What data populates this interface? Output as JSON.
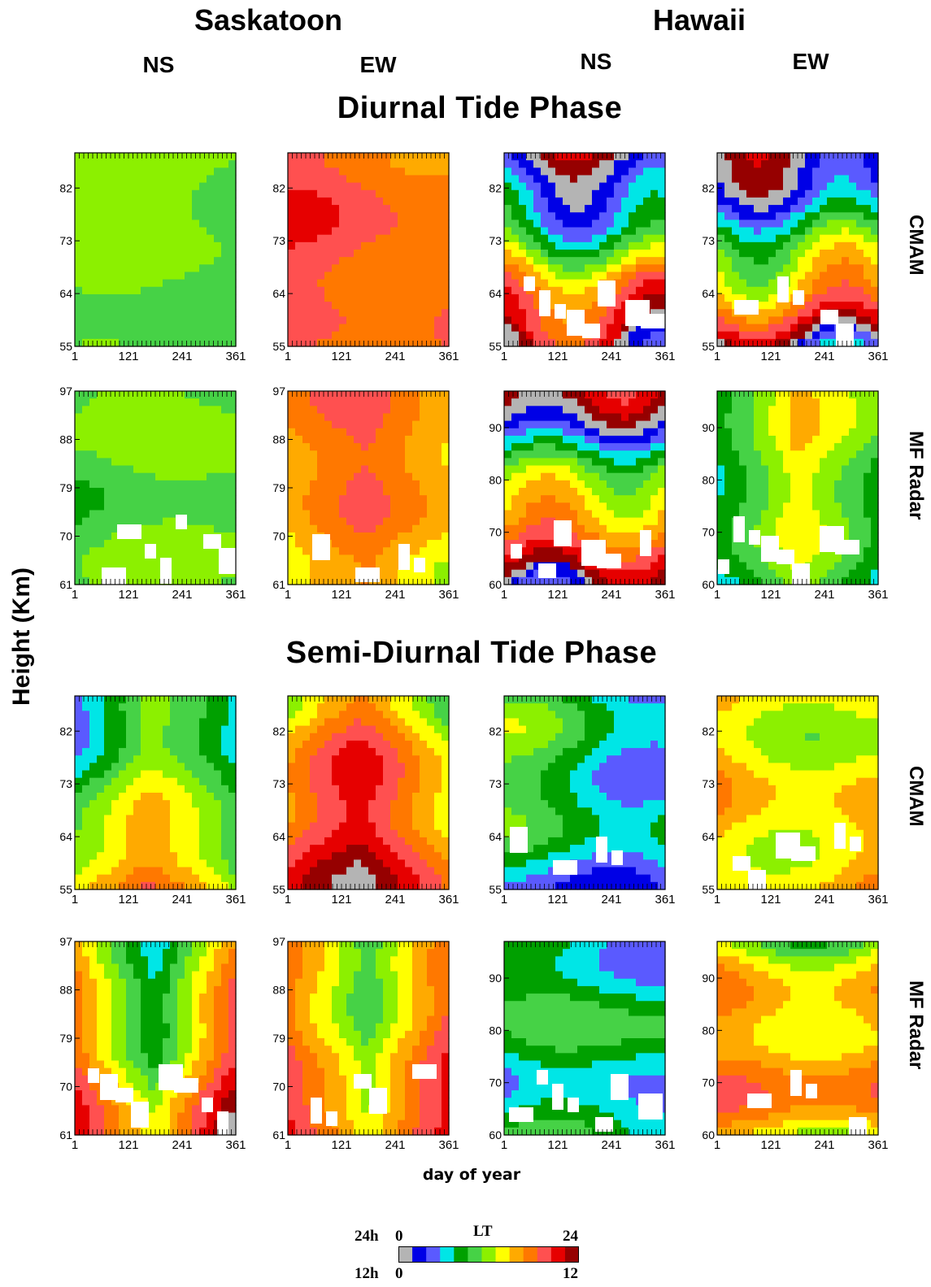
{
  "header": {
    "sites": [
      "Saskatoon",
      "Hawaii"
    ],
    "components": [
      "NS",
      "EW",
      "NS",
      "EW"
    ]
  },
  "sections": [
    "Diurnal Tide Phase",
    "Semi-Diurnal Tide Phase"
  ],
  "row_labels": [
    "CMAM",
    "MF Radar",
    "CMAM",
    "MF Radar"
  ],
  "y_axis_label": "Height (Km)",
  "x_axis_label": "day of year",
  "colorbar": {
    "title": "LT",
    "row1_label": "24h",
    "row2_label": "12h",
    "row1_min": "0",
    "row1_max": "24",
    "row2_min": "0",
    "row2_max": "12",
    "colors": [
      "#b4b4b4",
      "#0000e6",
      "#5a5aff",
      "#00e6e6",
      "#00a000",
      "#46d246",
      "#8cf000",
      "#ffff00",
      "#ffaa00",
      "#ff7800",
      "#ff5050",
      "#e60000",
      "#960000"
    ]
  },
  "chart_data": {
    "type": "heatmap",
    "description_units": "phase in local time (LT) hours",
    "x_ticks": [
      "1",
      "121",
      "241",
      "361"
    ],
    "x_range": [
      1,
      361
    ],
    "panels": [
      {
        "section": "Diurnal Tide Phase",
        "row": "CMAM",
        "site": "Saskatoon",
        "component": "NS",
        "y_ticks": [
          "55",
          "64",
          "73",
          "82"
        ],
        "y_range": [
          55,
          88
        ]
      },
      {
        "section": "Diurnal Tide Phase",
        "row": "CMAM",
        "site": "Saskatoon",
        "component": "EW",
        "y_ticks": [
          "55",
          "64",
          "73",
          "82"
        ],
        "y_range": [
          55,
          88
        ]
      },
      {
        "section": "Diurnal Tide Phase",
        "row": "CMAM",
        "site": "Hawaii",
        "component": "NS",
        "y_ticks": [
          "55",
          "64",
          "73",
          "82"
        ],
        "y_range": [
          55,
          88
        ]
      },
      {
        "section": "Diurnal Tide Phase",
        "row": "CMAM",
        "site": "Hawaii",
        "component": "EW",
        "y_ticks": [
          "55",
          "64",
          "73",
          "82"
        ],
        "y_range": [
          55,
          88
        ]
      },
      {
        "section": "Diurnal Tide Phase",
        "row": "MF Radar",
        "site": "Saskatoon",
        "component": "NS",
        "y_ticks": [
          "61",
          "70",
          "79",
          "88",
          "97"
        ],
        "y_range": [
          61,
          97
        ]
      },
      {
        "section": "Diurnal Tide Phase",
        "row": "MF Radar",
        "site": "Saskatoon",
        "component": "EW",
        "y_ticks": [
          "61",
          "70",
          "79",
          "88",
          "97"
        ],
        "y_range": [
          61,
          97
        ]
      },
      {
        "section": "Diurnal Tide Phase",
        "row": "MF Radar",
        "site": "Hawaii",
        "component": "NS",
        "y_ticks": [
          "60",
          "70",
          "80",
          "90"
        ],
        "y_range": [
          60,
          97
        ]
      },
      {
        "section": "Diurnal Tide Phase",
        "row": "MF Radar",
        "site": "Hawaii",
        "component": "EW",
        "y_ticks": [
          "60",
          "70",
          "80",
          "90"
        ],
        "y_range": [
          60,
          97
        ]
      },
      {
        "section": "Semi-Diurnal Tide Phase",
        "row": "CMAM",
        "site": "Saskatoon",
        "component": "NS",
        "y_ticks": [
          "55",
          "64",
          "73",
          "82"
        ],
        "y_range": [
          55,
          88
        ]
      },
      {
        "section": "Semi-Diurnal Tide Phase",
        "row": "CMAM",
        "site": "Saskatoon",
        "component": "EW",
        "y_ticks": [
          "55",
          "64",
          "73",
          "82"
        ],
        "y_range": [
          55,
          88
        ]
      },
      {
        "section": "Semi-Diurnal Tide Phase",
        "row": "CMAM",
        "site": "Hawaii",
        "component": "NS",
        "y_ticks": [
          "55",
          "64",
          "73",
          "82"
        ],
        "y_range": [
          55,
          88
        ]
      },
      {
        "section": "Semi-Diurnal Tide Phase",
        "row": "CMAM",
        "site": "Hawaii",
        "component": "EW",
        "y_ticks": [
          "55",
          "64",
          "73",
          "82"
        ],
        "y_range": [
          55,
          88
        ]
      },
      {
        "section": "Semi-Diurnal Tide Phase",
        "row": "MF Radar",
        "site": "Saskatoon",
        "component": "NS",
        "y_ticks": [
          "61",
          "70",
          "79",
          "88",
          "97"
        ],
        "y_range": [
          61,
          97
        ]
      },
      {
        "section": "Semi-Diurnal Tide Phase",
        "row": "MF Radar",
        "site": "Saskatoon",
        "component": "EW",
        "y_ticks": [
          "61",
          "70",
          "79",
          "88",
          "97"
        ],
        "y_range": [
          61,
          97
        ]
      },
      {
        "section": "Semi-Diurnal Tide Phase",
        "row": "MF Radar",
        "site": "Hawaii",
        "component": "NS",
        "y_ticks": [
          "60",
          "70",
          "80",
          "90"
        ],
        "y_range": [
          60,
          97
        ]
      },
      {
        "section": "Semi-Diurnal Tide Phase",
        "row": "MF Radar",
        "site": "Hawaii",
        "component": "EW",
        "y_ticks": [
          "60",
          "70",
          "80",
          "90"
        ],
        "y_range": [
          60,
          97
        ]
      }
    ]
  }
}
